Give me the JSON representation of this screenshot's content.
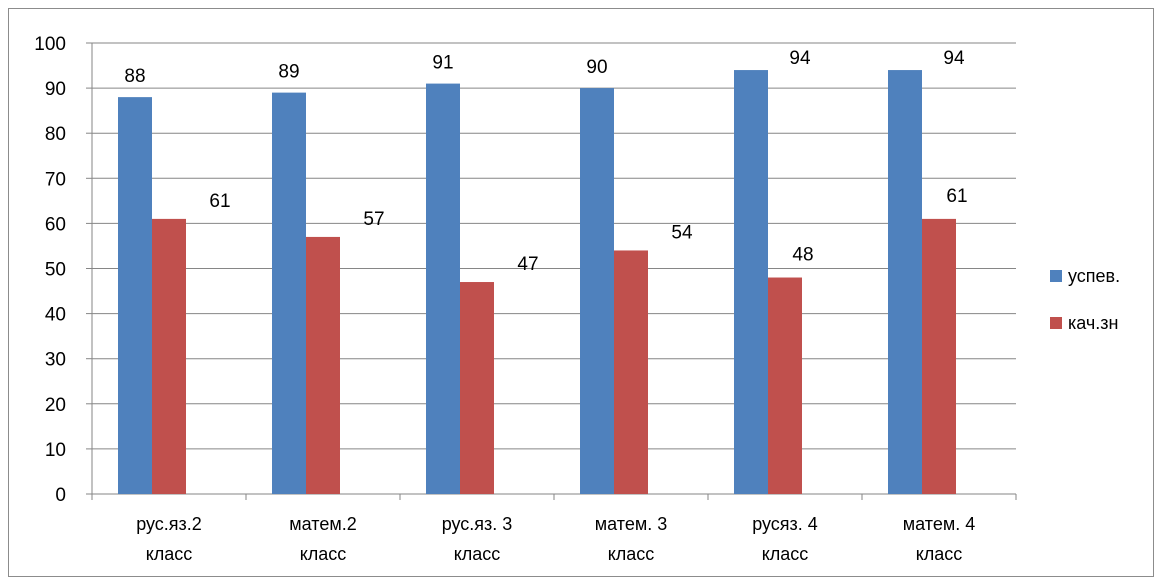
{
  "chart_data": {
    "type": "bar",
    "categories": [
      [
        "рус.яз.2",
        "класс"
      ],
      [
        "матем.2",
        "класс"
      ],
      [
        "рус.яз. 3",
        "класс"
      ],
      [
        "матем. 3",
        "класс"
      ],
      [
        "русяз. 4",
        "класс"
      ],
      [
        "матем. 4",
        "класс"
      ]
    ],
    "series": [
      {
        "name": "успев.",
        "color": "#4f81bd",
        "values": [
          88,
          89,
          91,
          90,
          94,
          94
        ]
      },
      {
        "name": "кач.зн",
        "color": "#c0504d",
        "values": [
          61,
          57,
          47,
          54,
          48,
          61
        ]
      }
    ],
    "ylim": [
      0,
      100
    ],
    "yticks": [
      0,
      10,
      20,
      30,
      40,
      50,
      60,
      70,
      80,
      90,
      100
    ],
    "grid": true,
    "legend_position": "right",
    "data_labels": true
  }
}
